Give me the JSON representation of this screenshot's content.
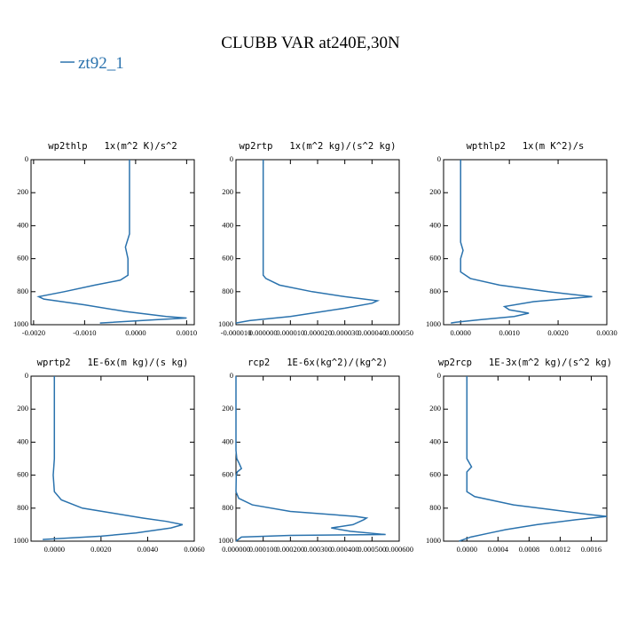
{
  "title": "CLUBB VAR at240E,30N",
  "legend": {
    "name": "zt92_1",
    "color": "#2a72ad"
  },
  "chart_data": [
    {
      "type": "line",
      "title": "wp2thlp   1x(m^2 K)/s^2",
      "x": [
        -0.00012,
        -0.00012,
        -0.00012,
        -0.0002,
        -0.00015,
        -0.00015,
        -0.0003,
        -0.0008,
        -0.0014,
        -0.0019,
        -0.0018,
        -0.001,
        -0.0002,
        0.0006,
        0.001,
        0.0004,
        -0.0007
      ],
      "y": [
        0,
        400,
        450,
        530,
        600,
        700,
        730,
        760,
        800,
        830,
        845,
        880,
        920,
        950,
        960,
        970,
        990
      ],
      "xlim": [
        -0.00205,
        0.00115
      ],
      "ylim": [
        1000,
        0
      ],
      "xticks": [
        {
          "value": -0.002,
          "label": "-0.0020"
        },
        {
          "value": -0.001,
          "label": "-0.0010"
        },
        {
          "value": 0,
          "label": "0.0000"
        },
        {
          "value": 0.001,
          "label": "0.0010"
        }
      ],
      "yticks": [
        0,
        200,
        400,
        600,
        800,
        1000
      ]
    },
    {
      "type": "line",
      "title": "wp2rtp   1x(m^2 kg)/(s^2 kg)",
      "x": [
        0,
        0,
        1e-06,
        6e-06,
        1.8e-05,
        3e-05,
        4.2e-05,
        4e-05,
        3e-05,
        1e-05,
        -5e-06,
        -1e-05
      ],
      "y": [
        0,
        700,
        720,
        760,
        800,
        830,
        855,
        870,
        900,
        950,
        975,
        990
      ],
      "xlim": [
        -1e-05,
        5e-05
      ],
      "ylim": [
        1000,
        0
      ],
      "xticks": [
        {
          "value": -1e-05,
          "label": "-0.000010"
        },
        {
          "value": 0,
          "label": "0.000000"
        },
        {
          "value": 1e-05,
          "label": "0.000010"
        },
        {
          "value": 2e-05,
          "label": "0.000020"
        },
        {
          "value": 3e-05,
          "label": "0.000030"
        },
        {
          "value": 4e-05,
          "label": "0.000040"
        },
        {
          "value": 5e-05,
          "label": "0.000050"
        }
      ],
      "yticks": [
        0,
        200,
        400,
        600,
        800,
        1000
      ]
    },
    {
      "type": "line",
      "title": "wpthlp2   1x(m K^2)/s",
      "x": [
        0,
        0,
        5e-05,
        0,
        0,
        0.0002,
        0.0008,
        0.0018,
        0.0027,
        0.0015,
        0.0009,
        0.001,
        0.0014,
        0.0011,
        0.0004,
        -0.0001,
        -0.0002
      ],
      "y": [
        0,
        500,
        550,
        600,
        680,
        720,
        760,
        800,
        830,
        860,
        890,
        910,
        930,
        950,
        970,
        985,
        990
      ],
      "xlim": [
        -0.00035,
        0.003
      ],
      "ylim": [
        1000,
        0
      ],
      "xticks": [
        {
          "value": 0,
          "label": "0.0000"
        },
        {
          "value": 0.001,
          "label": "0.0010"
        },
        {
          "value": 0.002,
          "label": "0.0020"
        },
        {
          "value": 0.003,
          "label": "0.0030"
        }
      ],
      "yticks": [
        0,
        200,
        400,
        600,
        800,
        1000
      ]
    },
    {
      "type": "line",
      "title": "wprtp2   1E-6x(m kg)/(s kg)",
      "x": [
        0,
        0,
        -5e-05,
        0,
        0.0003,
        0.0012,
        0.0025,
        0.0038,
        0.0048,
        0.0055,
        0.005,
        0.0035,
        0.002,
        -0.0005
      ],
      "y": [
        0,
        500,
        600,
        700,
        750,
        800,
        830,
        860,
        880,
        900,
        920,
        950,
        970,
        990
      ],
      "xlim": [
        -0.001,
        0.006
      ],
      "ylim": [
        1000,
        0
      ],
      "xticks": [
        {
          "value": 0,
          "label": "0.0000"
        },
        {
          "value": 0.002,
          "label": "0.0020"
        },
        {
          "value": 0.004,
          "label": "0.0040"
        },
        {
          "value": 0.006,
          "label": "0.0060"
        }
      ],
      "yticks": [
        0,
        200,
        400,
        600,
        800,
        1000
      ]
    },
    {
      "type": "line",
      "title": "rcp2   1E-6x(kg^2)/(kg^2)",
      "x": [
        0,
        0,
        3e-06,
        1.2e-05,
        2e-05,
        5e-06,
        1e-06,
        0,
        1e-05,
        6e-05,
        0.0002,
        0.00044,
        0.00048,
        0.00047,
        0.00043,
        0.00035,
        0.00042,
        0.00055,
        0.0002,
        2e-05,
        0
      ],
      "y": [
        0,
        450,
        500,
        530,
        560,
        580,
        600,
        700,
        740,
        780,
        820,
        850,
        860,
        870,
        900,
        920,
        940,
        960,
        965,
        975,
        1000
      ],
      "xlim": [
        0,
        0.0006
      ],
      "ylim": [
        1000,
        0
      ],
      "xticks": [
        {
          "value": 0,
          "label": "0.000000"
        },
        {
          "value": 0.0001,
          "label": "0.000100"
        },
        {
          "value": 0.0002,
          "label": "0.000200"
        },
        {
          "value": 0.0003,
          "label": "0.000300"
        },
        {
          "value": 0.0004,
          "label": "0.000400"
        },
        {
          "value": 0.0005,
          "label": "0.000500"
        },
        {
          "value": 0.0006,
          "label": "0.000600"
        }
      ],
      "yticks": [
        0,
        200,
        400,
        600,
        800,
        1000
      ]
    },
    {
      "type": "line",
      "title": "wp2rcp   1E-3x(m^2 kg)/(s^2 kg)",
      "x": [
        0,
        0,
        6e-05,
        0,
        0,
        0.0001,
        0.0006,
        0.0011,
        0.0016,
        0.0018,
        0.0014,
        0.0009,
        0.0005,
        0.0003,
        5e-05,
        -0.0001
      ],
      "y": [
        0,
        500,
        550,
        580,
        700,
        730,
        780,
        810,
        840,
        850,
        870,
        900,
        930,
        950,
        975,
        1000
      ],
      "xlim": [
        -0.0003,
        0.0018
      ],
      "ylim": [
        1000,
        0
      ],
      "xticks": [
        {
          "value": 0,
          "label": "0.0000"
        },
        {
          "value": 0.0004,
          "label": "0.0004"
        },
        {
          "value": 0.0008,
          "label": "0.0008"
        },
        {
          "value": 0.0012,
          "label": "0.0012"
        },
        {
          "value": 0.0016,
          "label": "0.0016"
        }
      ],
      "yticks": [
        0,
        200,
        400,
        600,
        800,
        1000
      ]
    }
  ]
}
